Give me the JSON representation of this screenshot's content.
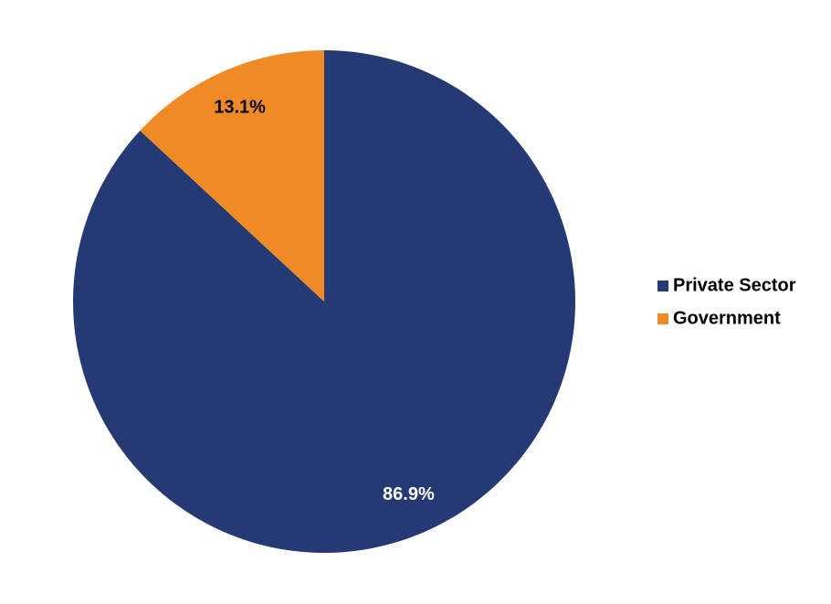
{
  "chart_data": {
    "type": "pie",
    "categories": [
      "Private Sector",
      "Government"
    ],
    "values": [
      86.9,
      13.1
    ],
    "value_labels": [
      "86.9%",
      "13.1%"
    ],
    "colors": [
      "#253a75",
      "#f08a24"
    ],
    "label_colors": [
      "#ffffff",
      "#000000"
    ],
    "legend": "right"
  }
}
